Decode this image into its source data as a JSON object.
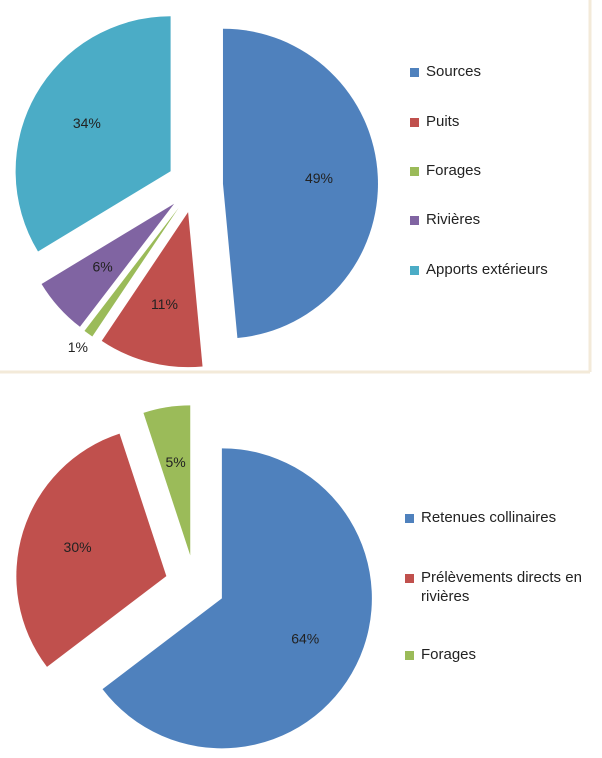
{
  "chart_data": [
    {
      "type": "pie",
      "categories": [
        "Sources",
        "Puits",
        "Forages",
        "Rivières",
        "Apports extérieurs"
      ],
      "values": [
        49,
        11,
        1,
        6,
        34
      ],
      "value_labels": [
        "49%",
        "11%",
        "1%",
        "6%",
        "34%"
      ],
      "colors": [
        "#4f81bd",
        "#c0504d",
        "#9bbb59",
        "#8064a2",
        "#4bacc6"
      ],
      "legend": "right"
    },
    {
      "type": "pie",
      "categories": [
        "Retenues collinaires",
        "Prélèvements directs en rivières",
        "Forages"
      ],
      "values": [
        64,
        30,
        5
      ],
      "value_labels": [
        "64%",
        "30%",
        "5%"
      ],
      "colors": [
        "#4f81bd",
        "#c0504d",
        "#9bbb59"
      ],
      "legend": "right"
    }
  ]
}
